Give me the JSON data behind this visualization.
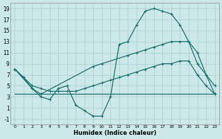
{
  "xlabel": "Humidex (Indice chaleur)",
  "bg_color": "#cce8e8",
  "grid_color": "#aacccc",
  "line_color": "#1a6e6e",
  "xlim": [
    -0.5,
    23.5
  ],
  "ylim": [
    -2,
    20
  ],
  "xticks": [
    0,
    1,
    2,
    3,
    4,
    5,
    6,
    7,
    8,
    9,
    10,
    11,
    12,
    13,
    14,
    15,
    16,
    17,
    18,
    19,
    20,
    21,
    22,
    23
  ],
  "yticks": [
    -1,
    1,
    3,
    5,
    7,
    9,
    11,
    13,
    15,
    17,
    19
  ],
  "line1_x": [
    0,
    1,
    2,
    3,
    4,
    5,
    6,
    7,
    8,
    9,
    10,
    11,
    12,
    13,
    14,
    15,
    16,
    17,
    18,
    19,
    20,
    21,
    22,
    23
  ],
  "line1_y": [
    8,
    6.5,
    4.5,
    3,
    2.5,
    4.5,
    5,
    1.5,
    0.5,
    -0.5,
    -0.5,
    3,
    12.5,
    13,
    16,
    18.5,
    19,
    18.5,
    18,
    16,
    13,
    9,
    7,
    5
  ],
  "line2_x": [
    0,
    2,
    3,
    9,
    10,
    13,
    14,
    15,
    16,
    17,
    18,
    19,
    20,
    21,
    22,
    23
  ],
  "line2_y": [
    8,
    4.5,
    3.5,
    8.5,
    9,
    10.5,
    11,
    11.5,
    12,
    12.5,
    13,
    13,
    13,
    11,
    7,
    3.5
  ],
  "line3_x": [
    0,
    1,
    2,
    3,
    4,
    5,
    6,
    7,
    8,
    9,
    10,
    11,
    12,
    13,
    14,
    15,
    16,
    17,
    18,
    19,
    20,
    21,
    22,
    23
  ],
  "line3_y": [
    8,
    6.5,
    5,
    4.5,
    4,
    4,
    4,
    4,
    4.5,
    5,
    5.5,
    6,
    6.5,
    7,
    7.5,
    8,
    8.5,
    9,
    9,
    9.5,
    9.5,
    7,
    5,
    3.5
  ],
  "line4_x": [
    0,
    23
  ],
  "line4_y": [
    3.5,
    3.5
  ]
}
